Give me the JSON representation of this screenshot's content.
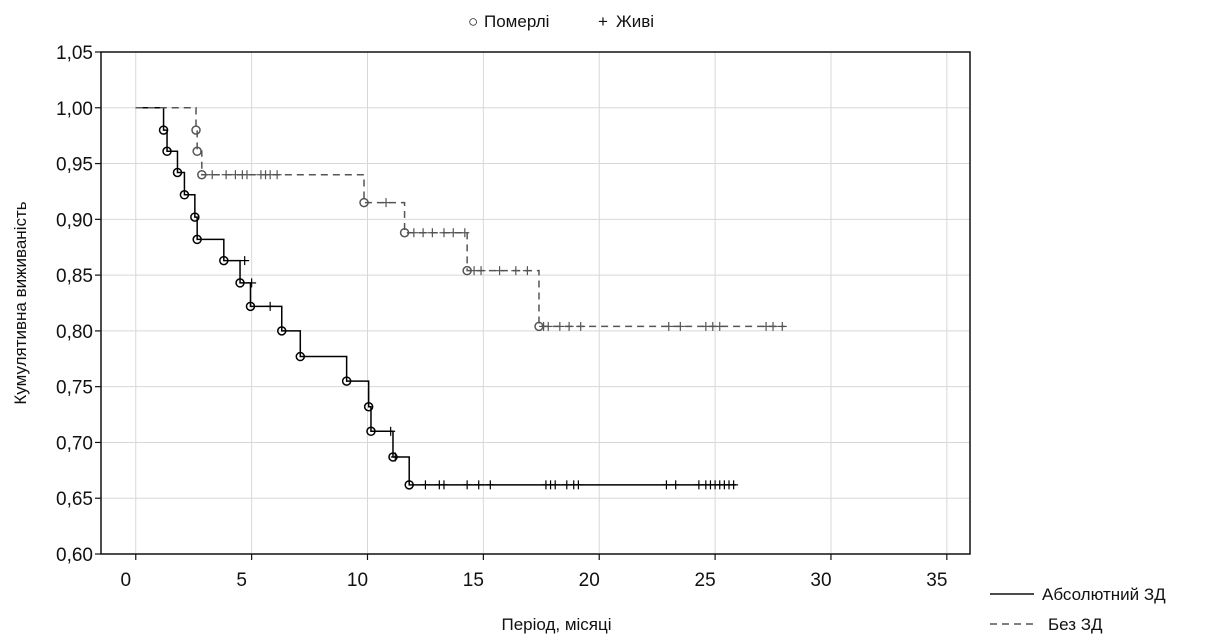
{
  "chart_data": {
    "type": "line",
    "subtype": "kaplan-meier",
    "xlabel": "Період, місяці",
    "ylabel": "Кумулятивна виживаність",
    "xlim": [
      -1.5,
      36
    ],
    "ylim": [
      0.6,
      1.05
    ],
    "x_ticks": [
      0,
      5,
      10,
      15,
      20,
      25,
      30,
      35
    ],
    "y_ticks": [
      0.6,
      0.65,
      0.7,
      0.75,
      0.8,
      0.85,
      0.9,
      0.95,
      1.0,
      1.05
    ],
    "y_tick_labels": [
      "0,60",
      "0,65",
      "0,70",
      "0,75",
      "0,80",
      "0,85",
      "0,90",
      "0,95",
      "1,00",
      "1,05"
    ],
    "grid": true,
    "marker_legend": {
      "died_symbol": "○",
      "died_label": "Померлі",
      "alive_symbol": "+",
      "alive_label": "Живі",
      "placement": "top-center"
    },
    "series": [
      {
        "name": "Абсолютний ЗД",
        "line_style": "solid",
        "color": "#000000",
        "start": [
          0,
          1.0
        ],
        "events": [
          [
            1.2,
            0.98
          ],
          [
            1.35,
            0.961
          ],
          [
            1.8,
            0.942
          ],
          [
            2.1,
            0.922
          ],
          [
            2.55,
            0.902
          ],
          [
            2.65,
            0.882
          ],
          [
            3.8,
            0.863
          ],
          [
            4.5,
            0.843
          ],
          [
            4.95,
            0.822
          ],
          [
            6.3,
            0.8
          ],
          [
            7.1,
            0.777
          ],
          [
            9.1,
            0.755
          ],
          [
            10.05,
            0.732
          ],
          [
            10.15,
            0.71
          ],
          [
            11.1,
            0.687
          ],
          [
            11.8,
            0.662
          ]
        ],
        "censored": [
          [
            4.7,
            0.863
          ],
          [
            5.0,
            0.843
          ],
          [
            5.8,
            0.822
          ],
          [
            11.0,
            0.71
          ],
          [
            11.2,
            0.687
          ],
          [
            12.5,
            0.662
          ],
          [
            13.1,
            0.662
          ],
          [
            13.3,
            0.662
          ],
          [
            14.3,
            0.662
          ],
          [
            14.8,
            0.662
          ],
          [
            15.3,
            0.662
          ],
          [
            17.7,
            0.662
          ],
          [
            17.9,
            0.662
          ],
          [
            18.1,
            0.662
          ],
          [
            18.6,
            0.662
          ],
          [
            18.9,
            0.662
          ],
          [
            19.1,
            0.662
          ],
          [
            22.9,
            0.662
          ],
          [
            23.3,
            0.662
          ],
          [
            24.3,
            0.662
          ],
          [
            24.6,
            0.662
          ],
          [
            24.8,
            0.662
          ],
          [
            25.0,
            0.662
          ],
          [
            25.2,
            0.662
          ],
          [
            25.4,
            0.662
          ],
          [
            25.6,
            0.662
          ],
          [
            25.8,
            0.662
          ]
        ],
        "end_x": 25.9
      },
      {
        "name": "Без ЗД",
        "line_style": "dashed",
        "color": "#555555",
        "start": [
          0,
          1.0
        ],
        "events": [
          [
            2.6,
            0.98
          ],
          [
            2.65,
            0.961
          ],
          [
            2.85,
            0.94
          ],
          [
            9.85,
            0.915
          ],
          [
            11.6,
            0.888
          ],
          [
            14.3,
            0.854
          ],
          [
            17.4,
            0.804
          ]
        ],
        "censored": [
          [
            3.3,
            0.94
          ],
          [
            3.9,
            0.94
          ],
          [
            4.3,
            0.94
          ],
          [
            4.6,
            0.94
          ],
          [
            4.8,
            0.94
          ],
          [
            5.4,
            0.94
          ],
          [
            5.6,
            0.94
          ],
          [
            5.8,
            0.94
          ],
          [
            6.1,
            0.94
          ],
          [
            10.8,
            0.915
          ],
          [
            12.0,
            0.888
          ],
          [
            12.4,
            0.888
          ],
          [
            12.8,
            0.888
          ],
          [
            13.3,
            0.888
          ],
          [
            13.7,
            0.888
          ],
          [
            14.2,
            0.888
          ],
          [
            14.6,
            0.854
          ],
          [
            14.9,
            0.854
          ],
          [
            15.7,
            0.854
          ],
          [
            16.4,
            0.854
          ],
          [
            16.9,
            0.854
          ],
          [
            17.6,
            0.804
          ],
          [
            17.8,
            0.804
          ],
          [
            18.3,
            0.804
          ],
          [
            18.7,
            0.804
          ],
          [
            19.2,
            0.804
          ],
          [
            23.0,
            0.804
          ],
          [
            23.5,
            0.804
          ],
          [
            24.6,
            0.804
          ],
          [
            24.9,
            0.804
          ],
          [
            25.2,
            0.804
          ],
          [
            27.2,
            0.804
          ],
          [
            27.5,
            0.804
          ],
          [
            27.9,
            0.804
          ]
        ],
        "end_x": 28.0
      }
    ],
    "line_legend": {
      "placement": "bottom-right",
      "solid_label": "Абсолютний ЗД",
      "dashed_label": "Без ЗД"
    }
  }
}
